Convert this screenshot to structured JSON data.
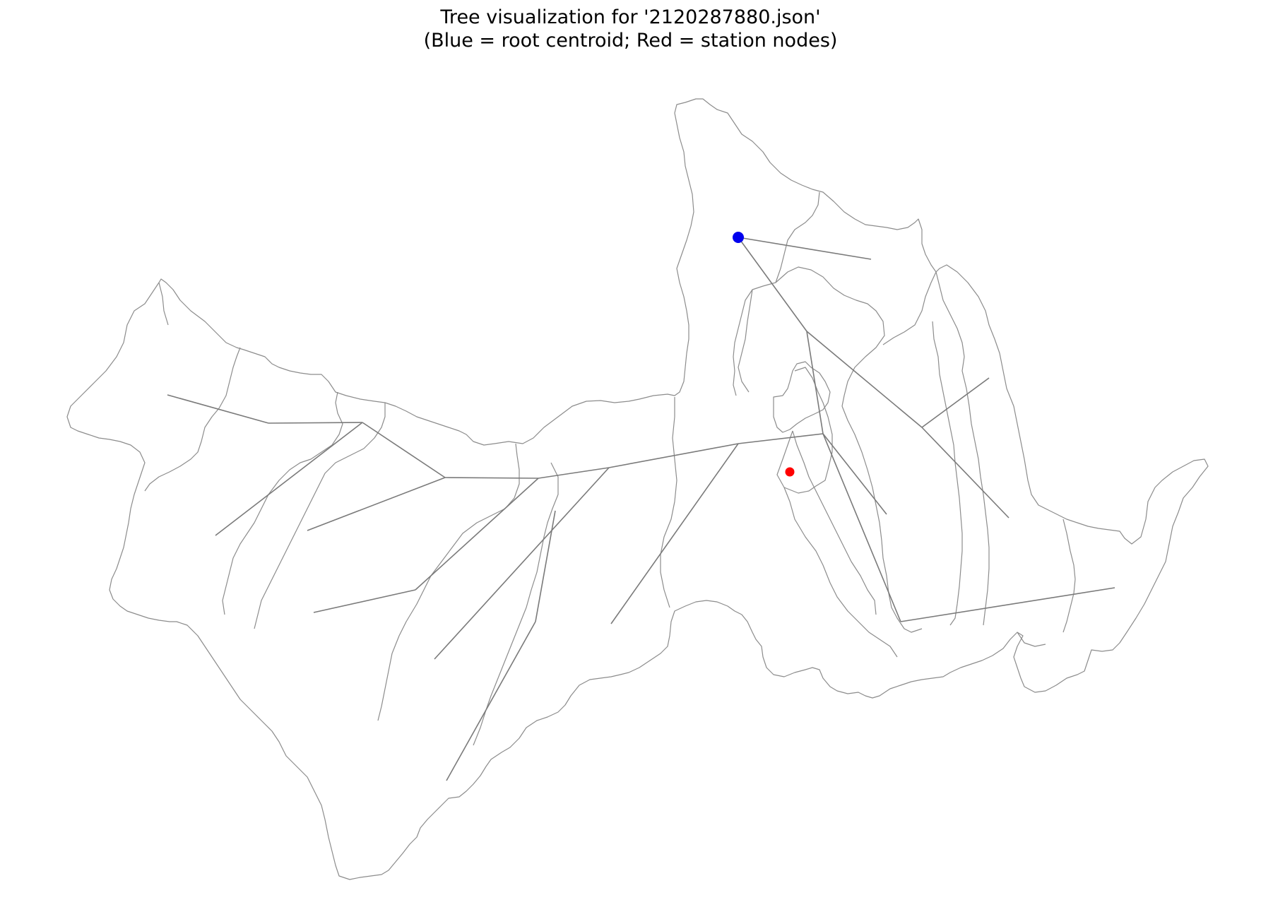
{
  "title": {
    "line1": "Tree visualization for '2120287880.json'",
    "line2": "(Blue = root centroid; Red = station nodes)"
  },
  "colors": {
    "background": "#ffffff",
    "boundary": "#8c8c8c",
    "edge": "#7a7a7a",
    "root_node": "#0000ee",
    "station_node": "#ff0000"
  },
  "legend_meaning": {
    "root": "root centroid",
    "station": "station nodes"
  },
  "axes_visible": false
}
